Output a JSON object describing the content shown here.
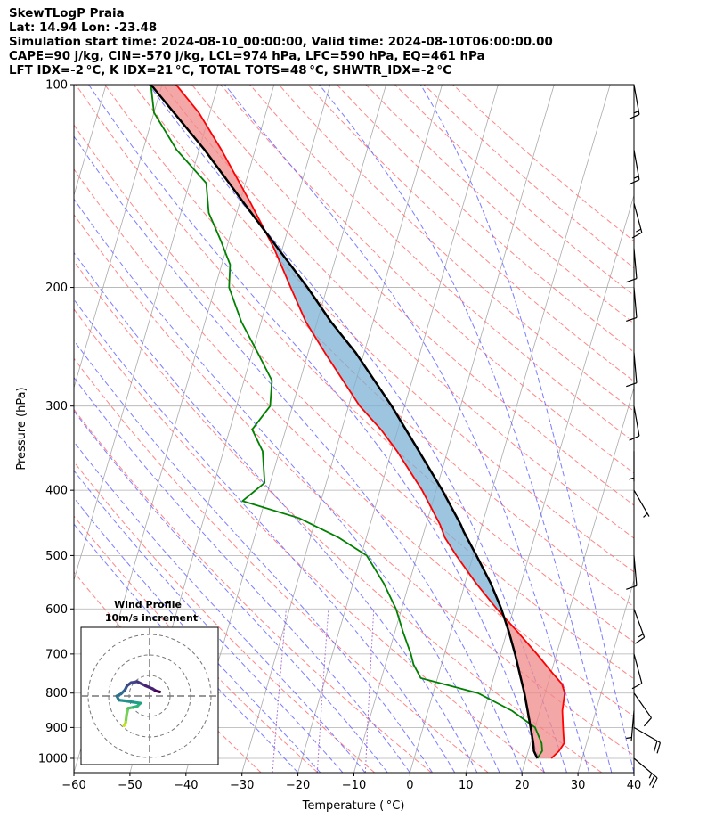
{
  "header": {
    "lines": [
      "SkewTLogP Praia",
      "Lat: 14.94    Lon: -23.48",
      "Simulation start time: 2024-08-10_00:00:00, Valid time: 2024-08-10T06:00:00.00",
      "CAPE=90 j/kg, CIN=-570 j/kg, LCL=974 hPa, LFC=590 hPa, EQ=461 hPa",
      "LFT IDX=-2 °C, K IDX=21 °C, TOTAL TOTS=48 °C, SHWTR_IDX=-2 °C"
    ]
  },
  "colors": {
    "temperature": "#ff0000",
    "dewpoint": "#008000",
    "parcel": "#000000",
    "cape_fill": "#7eb1d6",
    "cin_fill": "#f08a8a",
    "dry_adiabat": "#ff6666",
    "moist_adiabat": "#6666ff",
    "mixing_ratio": "#9955cc",
    "isotherm": "#aaaaaa"
  },
  "chart_data": {
    "type": "line",
    "subtype": "skew-t log-p",
    "xlabel": "Temperature ( °C)",
    "ylabel": "Pressure (hPa)",
    "xlim": [
      -60,
      40
    ],
    "ylim": [
      1050,
      100
    ],
    "y_scale": "log",
    "x_ticks": [
      "−60",
      "−50",
      "−40",
      "−30",
      "−20",
      "−10",
      "0",
      "10",
      "20",
      "30",
      "40"
    ],
    "y_ticks": [
      "100",
      "200",
      "300",
      "400",
      "500",
      "600",
      "700",
      "800",
      "900",
      "1000"
    ],
    "grid": true,
    "series": [
      {
        "name": "",
        "role": "temperature",
        "points": [
          [
            1000,
            24.5
          ],
          [
            975,
            25.5
          ],
          [
            950,
            26.0
          ],
          [
            925,
            25.5
          ],
          [
            900,
            25.0
          ],
          [
            850,
            24.0
          ],
          [
            800,
            23.5
          ],
          [
            775,
            22.5
          ],
          [
            750,
            20.5
          ],
          [
            700,
            16.5
          ],
          [
            650,
            12.0
          ],
          [
            600,
            7.0
          ],
          [
            550,
            2.0
          ],
          [
            500,
            -3.0
          ],
          [
            470,
            -6.0
          ],
          [
            450,
            -7.5
          ],
          [
            400,
            -12.5
          ],
          [
            350,
            -19.0
          ],
          [
            325,
            -23.0
          ],
          [
            300,
            -28.0
          ],
          [
            250,
            -37.0
          ],
          [
            225,
            -42.0
          ],
          [
            200,
            -46.5
          ],
          [
            175,
            -51.5
          ],
          [
            150,
            -58.0
          ],
          [
            125,
            -66.0
          ],
          [
            110,
            -72.0
          ],
          [
            100,
            -77.5
          ]
        ]
      },
      {
        "name": "",
        "role": "dewpoint",
        "points": [
          [
            1000,
            22.0
          ],
          [
            975,
            22.5
          ],
          [
            950,
            22.0
          ],
          [
            900,
            20.0
          ],
          [
            850,
            15.0
          ],
          [
            800,
            8.0
          ],
          [
            760,
            -3.0
          ],
          [
            725,
            -5.0
          ],
          [
            700,
            -6.0
          ],
          [
            650,
            -8.5
          ],
          [
            600,
            -11.0
          ],
          [
            550,
            -14.5
          ],
          [
            500,
            -19.0
          ],
          [
            470,
            -25.0
          ],
          [
            440,
            -33.0
          ],
          [
            415,
            -44.0
          ],
          [
            390,
            -41.0
          ],
          [
            350,
            -43.0
          ],
          [
            325,
            -46.0
          ],
          [
            300,
            -44.0
          ],
          [
            275,
            -45.0
          ],
          [
            250,
            -49.0
          ],
          [
            225,
            -53.5
          ],
          [
            200,
            -57.5
          ],
          [
            185,
            -58.5
          ],
          [
            170,
            -61.5
          ],
          [
            155,
            -65.0
          ],
          [
            140,
            -67.0
          ],
          [
            125,
            -74.0
          ],
          [
            110,
            -80.0
          ],
          [
            100,
            -82.0
          ]
        ]
      },
      {
        "name": "",
        "role": "parcel",
        "points": [
          [
            1000,
            22.0
          ],
          [
            975,
            21.0
          ],
          [
            950,
            20.5
          ],
          [
            900,
            19.2
          ],
          [
            850,
            17.8
          ],
          [
            800,
            16.3
          ],
          [
            750,
            14.5
          ],
          [
            700,
            12.6
          ],
          [
            650,
            10.4
          ],
          [
            600,
            7.8
          ],
          [
            590,
            7.2
          ],
          [
            550,
            4.6
          ],
          [
            500,
            0.6
          ],
          [
            461,
            -2.9
          ],
          [
            450,
            -3.8
          ],
          [
            400,
            -8.9
          ],
          [
            350,
            -15.1
          ],
          [
            300,
            -22.3
          ],
          [
            250,
            -31.5
          ],
          [
            225,
            -37.5
          ],
          [
            200,
            -43.5
          ],
          [
            175,
            -50.8
          ],
          [
            150,
            -59.2
          ],
          [
            125,
            -69.0
          ],
          [
            100,
            -82.0
          ]
        ]
      }
    ],
    "wind_barbs": [
      {
        "p": 100,
        "speed_kt": 15,
        "dir_deg": 80
      },
      {
        "p": 125,
        "speed_kt": 15,
        "dir_deg": 80
      },
      {
        "p": 150,
        "speed_kt": 15,
        "dir_deg": 75
      },
      {
        "p": 175,
        "speed_kt": 10,
        "dir_deg": 85
      },
      {
        "p": 200,
        "speed_kt": 10,
        "dir_deg": 85
      },
      {
        "p": 250,
        "speed_kt": 10,
        "dir_deg": 85
      },
      {
        "p": 300,
        "speed_kt": 10,
        "dir_deg": 80
      },
      {
        "p": 350,
        "speed_kt": 5,
        "dir_deg": 90
      },
      {
        "p": 400,
        "speed_kt": 5,
        "dir_deg": 60
      },
      {
        "p": 500,
        "speed_kt": 10,
        "dir_deg": 85
      },
      {
        "p": 600,
        "speed_kt": 15,
        "dir_deg": 70
      },
      {
        "p": 700,
        "speed_kt": 10,
        "dir_deg": 75
      },
      {
        "p": 800,
        "speed_kt": 10,
        "dir_deg": 55
      },
      {
        "p": 850,
        "speed_kt": 5,
        "dir_deg": 95
      },
      {
        "p": 900,
        "speed_kt": 20,
        "dir_deg": 30
      },
      {
        "p": 1000,
        "speed_kt": 25,
        "dir_deg": 40
      }
    ],
    "inset": {
      "title": "Wind Profile",
      "subtitle": "10m/s increment",
      "hodograph_uv": [
        [
          -12.5,
          14.5
        ],
        [
          -12.0,
          13.8
        ],
        [
          -11.7,
          13.0
        ],
        [
          -11.5,
          11.5
        ],
        [
          -11.2,
          9.0
        ],
        [
          -10.5,
          6.0
        ],
        [
          -8.0,
          5.5
        ],
        [
          -6.0,
          5.0
        ],
        [
          -4.5,
          3.5
        ],
        [
          -8.0,
          3.0
        ],
        [
          -11.0,
          2.5
        ],
        [
          -15.0,
          2.0
        ],
        [
          -16.0,
          0.0
        ],
        [
          -14.0,
          -1.0
        ],
        [
          -12.0,
          -3.0
        ],
        [
          -11.0,
          -5.0
        ],
        [
          -9.0,
          -6.5
        ],
        [
          -6.0,
          -7.0
        ],
        [
          -2.0,
          -5.0
        ],
        [
          1.5,
          -3.5
        ],
        [
          3.0,
          -2.5
        ],
        [
          5.0,
          -2.0
        ]
      ]
    }
  }
}
